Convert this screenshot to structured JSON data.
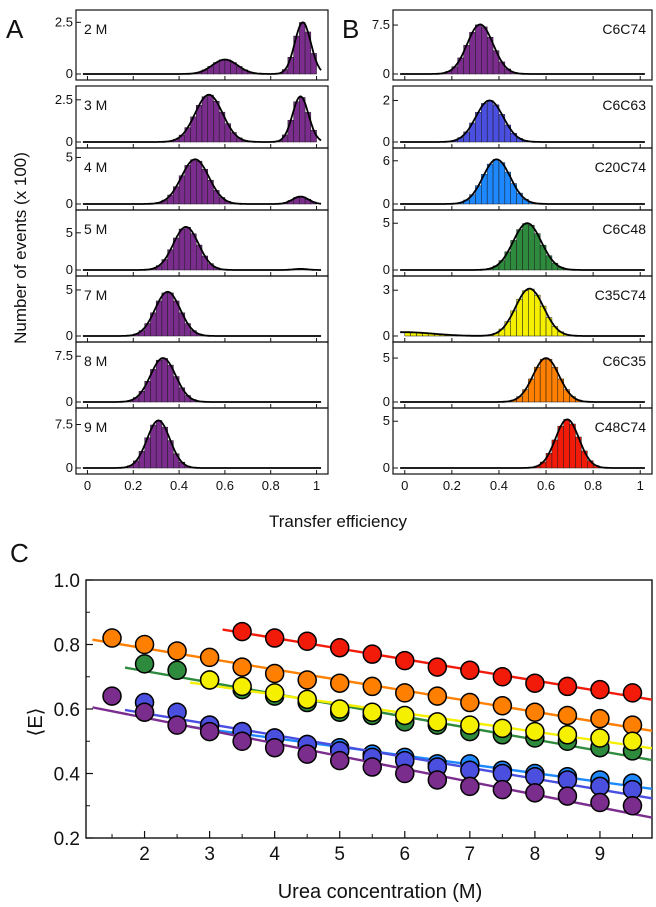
{
  "panels": {
    "a": "A",
    "b": "B",
    "c": "C"
  },
  "axes": {
    "hist_ylabel": "Number of events (x 100)",
    "hist_xlabel": "Transfer efficiency",
    "c_ylabel": "⟨E⟩",
    "c_xlabel": "Urea concentration (M)"
  },
  "chart_data": [
    {
      "type": "bar",
      "panel": "A",
      "x_range": [
        -0.05,
        1.05
      ],
      "x_ticks": [
        "0",
        "0.2",
        "0.4",
        "0.6",
        "0.8",
        "1"
      ],
      "x_tick_values": [
        0,
        0.2,
        0.4,
        0.6,
        0.8,
        1.0
      ],
      "bar_color": "#7B2D8E",
      "rows": [
        {
          "label": "2 M",
          "ymax": 3.0,
          "y_ticks": [
            "0",
            "2.5"
          ],
          "y_tick_values": [
            0,
            2.5
          ],
          "peaks": [
            [
              0.6,
              0.7,
              0.055
            ],
            [
              0.94,
              2.5,
              0.035
            ]
          ]
        },
        {
          "label": "3 M",
          "ymax": 3.2,
          "y_ticks": [
            "0",
            "2.5"
          ],
          "y_tick_values": [
            0,
            2.5
          ],
          "peaks": [
            [
              0.53,
              2.8,
              0.06
            ],
            [
              0.93,
              2.7,
              0.035
            ]
          ]
        },
        {
          "label": "4 M",
          "ymax": 5.8,
          "y_ticks": [
            "0",
            "5"
          ],
          "y_tick_values": [
            0,
            5
          ],
          "peaks": [
            [
              0.47,
              4.8,
              0.06
            ],
            [
              0.93,
              0.8,
              0.035
            ]
          ]
        },
        {
          "label": "5 M",
          "ymax": 7.8,
          "y_ticks": [
            "0",
            "5"
          ],
          "y_tick_values": [
            0,
            5
          ],
          "peaks": [
            [
              0.43,
              5.8,
              0.055
            ],
            [
              0.93,
              0.15,
              0.03
            ]
          ]
        },
        {
          "label": "7 M",
          "ymax": 6.3,
          "y_ticks": [
            "0",
            "5"
          ],
          "y_tick_values": [
            0,
            5
          ],
          "peaks": [
            [
              0.35,
              4.8,
              0.055
            ]
          ]
        },
        {
          "label": "8 M",
          "ymax": 9.5,
          "y_ticks": [
            "0",
            "7.5"
          ],
          "y_tick_values": [
            0,
            7.5
          ],
          "peaks": [
            [
              0.33,
              7.2,
              0.055
            ]
          ]
        },
        {
          "label": "9 M",
          "ymax": 10.0,
          "y_ticks": [
            "0",
            "7.5"
          ],
          "y_tick_values": [
            0,
            7.5
          ],
          "peaks": [
            [
              0.31,
              8.2,
              0.05
            ]
          ]
        }
      ]
    },
    {
      "type": "bar",
      "panel": "B",
      "x_range": [
        -0.05,
        1.05
      ],
      "x_ticks": [
        "0",
        "0.2",
        "0.4",
        "0.6",
        "0.8",
        "1"
      ],
      "x_tick_values": [
        0,
        0.2,
        0.4,
        0.6,
        0.8,
        1.0
      ],
      "rows": [
        {
          "label": "C6C74",
          "color": "#7B2D8E",
          "ymax": 9.5,
          "y_ticks": [
            "0",
            "7.5"
          ],
          "y_tick_values": [
            0,
            7.5
          ],
          "peaks": [
            [
              0.32,
              7.6,
              0.055
            ]
          ]
        },
        {
          "label": "C6C63",
          "color": "#4B4FE0",
          "ymax": 2.6,
          "y_ticks": [
            "0",
            "2"
          ],
          "y_tick_values": [
            0,
            2
          ],
          "peaks": [
            [
              0.36,
              2.0,
              0.058
            ]
          ]
        },
        {
          "label": "C20C74",
          "color": "#1E88FF",
          "ymax": 7.5,
          "y_ticks": [
            "0",
            "6"
          ],
          "y_tick_values": [
            0,
            6
          ],
          "peaks": [
            [
              0.39,
              6.2,
              0.058
            ]
          ]
        },
        {
          "label": "C6C48",
          "color": "#2E8B3D",
          "ymax": 6.2,
          "y_ticks": [
            "0",
            "5"
          ],
          "y_tick_values": [
            0,
            5
          ],
          "peaks": [
            [
              0.52,
              5.0,
              0.06
            ]
          ]
        },
        {
          "label": "C35C74",
          "color": "#F5F000",
          "ymax": 3.8,
          "y_ticks": [
            "0",
            "3"
          ],
          "y_tick_values": [
            0,
            3
          ],
          "peaks": [
            [
              0.53,
              3.1,
              0.06
            ],
            [
              0.0,
              0.25,
              0.12
            ]
          ]
        },
        {
          "label": "C6C35",
          "color": "#FF7F00",
          "ymax": 6.6,
          "y_ticks": [
            "0",
            "5"
          ],
          "y_tick_values": [
            0,
            5
          ],
          "peaks": [
            [
              0.6,
              5.0,
              0.055
            ]
          ]
        },
        {
          "label": "C48C74",
          "color": "#F21B0A",
          "ymax": 6.2,
          "y_ticks": [
            "0",
            "5"
          ],
          "y_tick_values": [
            0,
            5
          ],
          "peaks": [
            [
              0.69,
              5.2,
              0.05
            ]
          ]
        }
      ]
    },
    {
      "type": "scatter",
      "panel": "C",
      "xlabel": "Urea concentration (M)",
      "ylabel": "⟨E⟩",
      "xlim": [
        1.1,
        9.8
      ],
      "ylim": [
        0.2,
        1.0
      ],
      "x_ticks": [
        "2",
        "3",
        "4",
        "5",
        "6",
        "7",
        "8",
        "9"
      ],
      "x_tick_values": [
        2,
        3,
        4,
        5,
        6,
        7,
        8,
        9
      ],
      "y_ticks": [
        "0.2",
        "0.4",
        "0.6",
        "0.8",
        "1.0"
      ],
      "y_tick_values": [
        0.2,
        0.4,
        0.6,
        0.8,
        1.0
      ],
      "series": [
        {
          "color": "#F21B0A",
          "x": [
            3.5,
            4,
            4.5,
            5,
            5.5,
            6,
            6.5,
            7,
            7.5,
            8,
            8.5,
            9,
            9.5
          ],
          "y": [
            0.84,
            0.82,
            0.81,
            0.79,
            0.77,
            0.75,
            0.73,
            0.72,
            0.7,
            0.68,
            0.67,
            0.66,
            0.65
          ]
        },
        {
          "color": "#FF7F00",
          "x": [
            1.5,
            2,
            2.5,
            3,
            3.5,
            4,
            4.5,
            5,
            5.5,
            6,
            6.5,
            7,
            7.5,
            8,
            8.5,
            9,
            9.5
          ],
          "y": [
            0.82,
            0.8,
            0.78,
            0.76,
            0.73,
            0.71,
            0.69,
            0.68,
            0.67,
            0.65,
            0.64,
            0.62,
            0.61,
            0.59,
            0.58,
            0.57,
            0.55
          ]
        },
        {
          "color": "#2E8B3D",
          "x": [
            2,
            2.5,
            3,
            3.5,
            4,
            4.5,
            5,
            5.5,
            6,
            6.5,
            7,
            7.5,
            8,
            8.5,
            9,
            9.5
          ],
          "y": [
            0.74,
            0.72,
            0.69,
            0.66,
            0.64,
            0.62,
            0.59,
            0.58,
            0.56,
            0.55,
            0.53,
            0.52,
            0.51,
            0.5,
            0.48,
            0.47
          ]
        },
        {
          "color": "#F5F000",
          "x": [
            3,
            3.5,
            4,
            4.5,
            5,
            5.5,
            6,
            6.5,
            7,
            7.5,
            8,
            8.5,
            9,
            9.5
          ],
          "y": [
            0.69,
            0.67,
            0.65,
            0.63,
            0.6,
            0.59,
            0.58,
            0.56,
            0.55,
            0.54,
            0.53,
            0.52,
            0.51,
            0.5
          ]
        },
        {
          "color": "#1E88FF",
          "x": [
            3,
            3.5,
            4,
            4.5,
            5,
            5.5,
            6,
            6.5,
            7,
            7.5,
            8,
            8.5,
            9,
            9.5
          ],
          "y": [
            0.55,
            0.53,
            0.51,
            0.49,
            0.48,
            0.46,
            0.45,
            0.43,
            0.43,
            0.41,
            0.4,
            0.39,
            0.38,
            0.37
          ]
        },
        {
          "color": "#4B4FE0",
          "x": [
            2,
            2.5,
            3,
            3.5,
            4,
            4.5,
            5,
            5.5,
            6,
            6.5,
            7,
            7.5,
            8,
            8.5,
            9,
            9.5
          ],
          "y": [
            0.62,
            0.59,
            0.55,
            0.53,
            0.51,
            0.49,
            0.47,
            0.45,
            0.44,
            0.42,
            0.41,
            0.4,
            0.39,
            0.38,
            0.36,
            0.35
          ]
        },
        {
          "color": "#7B2D8E",
          "x": [
            1.5,
            2,
            2.5,
            3,
            3.5,
            4,
            4.5,
            5,
            5.5,
            6,
            6.5,
            7,
            7.5,
            8,
            8.5,
            9,
            9.5
          ],
          "y": [
            0.64,
            0.59,
            0.55,
            0.53,
            0.5,
            0.48,
            0.46,
            0.44,
            0.42,
            0.4,
            0.38,
            0.36,
            0.35,
            0.34,
            0.33,
            0.31,
            0.3
          ]
        }
      ]
    }
  ]
}
